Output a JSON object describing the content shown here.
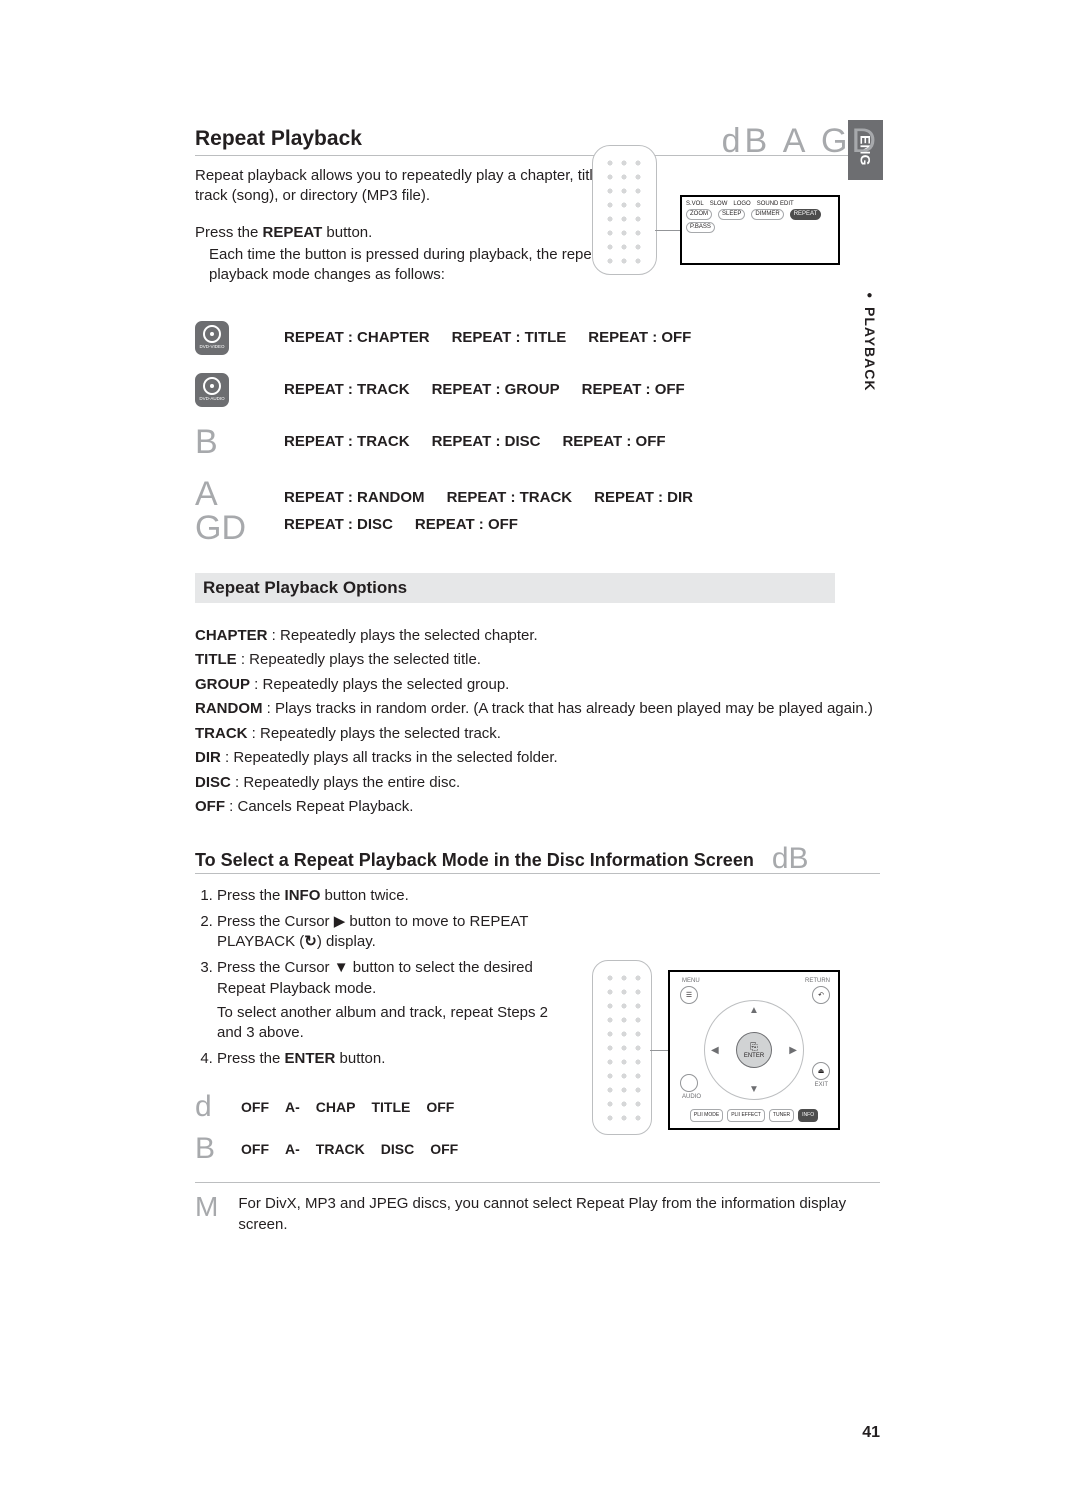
{
  "side": {
    "lang": "ENG",
    "section": "PLAYBACK"
  },
  "header": {
    "title": "Repeat Playback",
    "glyph": "dB   A GD",
    "intro": "Repeat playback allows you to repeatedly play a chapter, title, track (song), or directory (MP3 ﬁle)."
  },
  "press": {
    "prefix": "Press the ",
    "button": "REPEAT",
    "suffix": " button.",
    "sub": "Each time the button is pressed during playback, the repeat playback mode changes as follows:"
  },
  "panel1": {
    "row1": [
      "S.VOL",
      "SLOW",
      "LOGO",
      "SOUND EDIT"
    ],
    "row2": [
      "ZOOM",
      "SLEEP",
      "DIMMER",
      "REPEAT"
    ],
    "row3": [
      "P.BASS"
    ]
  },
  "repeat_rows": [
    {
      "icon": "disc-badge",
      "sub": "DVD-VIDEO",
      "terms": [
        "REPEAT : CHAPTER",
        "REPEAT : TITLE",
        "REPEAT : OFF"
      ]
    },
    {
      "icon": "disc-badge",
      "sub": "DVD-AUDIO",
      "terms": [
        "REPEAT : TRACK",
        "REPEAT : GROUP",
        "REPEAT : OFF"
      ]
    },
    {
      "icon": "glyph",
      "glyph": "B",
      "terms": [
        "REPEAT : TRACK",
        "REPEAT : DISC",
        "REPEAT : OFF"
      ]
    },
    {
      "icon": "glyph",
      "glyph": "A GD",
      "terms": [
        "REPEAT : RANDOM",
        "REPEAT : TRACK",
        "REPEAT : DIR",
        "REPEAT : DISC",
        "REPEAT : OFF"
      ]
    }
  ],
  "subhead": "Repeat Playback Options",
  "descriptions": [
    {
      "term": "CHAPTER",
      "text": " : Repeatedly plays the selected chapter."
    },
    {
      "term": "TITLE",
      "text": " : Repeatedly plays the selected title."
    },
    {
      "term": "GROUP",
      "text": " : Repeatedly plays the selected group."
    },
    {
      "term": "RANDOM",
      "text": " : Plays tracks in random order. (A track that has already been played may be played again.)"
    },
    {
      "term": "TRACK",
      "text": " : Repeatedly plays the selected track."
    },
    {
      "term": "DIR",
      "text": " : Repeatedly plays all tracks in the selected folder."
    },
    {
      "term": "DISC",
      "text": " : Repeatedly plays the entire disc."
    },
    {
      "term": "OFF",
      "text": " : Cancels Repeat Playback."
    }
  ],
  "section2": {
    "title": "To Select a Repeat Playback Mode in the Disc Information Screen",
    "glyph": "dB"
  },
  "steps": {
    "s1_pre": "Press the ",
    "s1_btn": "INFO",
    "s1_post": " button twice.",
    "s2": "Press the Cursor ▶ button to move to REPEAT PLAYBACK (",
    "s2_icon": "↻",
    "s2_post": ") display.",
    "s3": "Press the Cursor ▼ button to select the desired Repeat Playback mode.",
    "s3_sub": "To select another album and track, repeat Steps 2 and 3 above.",
    "s4_pre": "Press the ",
    "s4_btn": "ENTER",
    "s4_post": " button."
  },
  "panel2": {
    "menu": "MENU",
    "return": "RETURN",
    "audio": "AUDIO",
    "exit": "EXIT",
    "enter": "ENTER",
    "pills": [
      "PLII MODE",
      "PLII EFFECT",
      "TUNER",
      "INFO"
    ]
  },
  "cycles": [
    {
      "glyph": "d",
      "terms": [
        "OFF",
        "A-",
        "CHAP",
        "TITLE",
        "OFF"
      ]
    },
    {
      "glyph": "B",
      "terms": [
        "OFF",
        "A-",
        "TRACK",
        "DISC",
        "OFF"
      ]
    }
  ],
  "footnote": {
    "glyph": "M",
    "text": "For DivX, MP3 and JPEG discs, you cannot select Repeat Play from the information display screen."
  },
  "page_number": "41"
}
